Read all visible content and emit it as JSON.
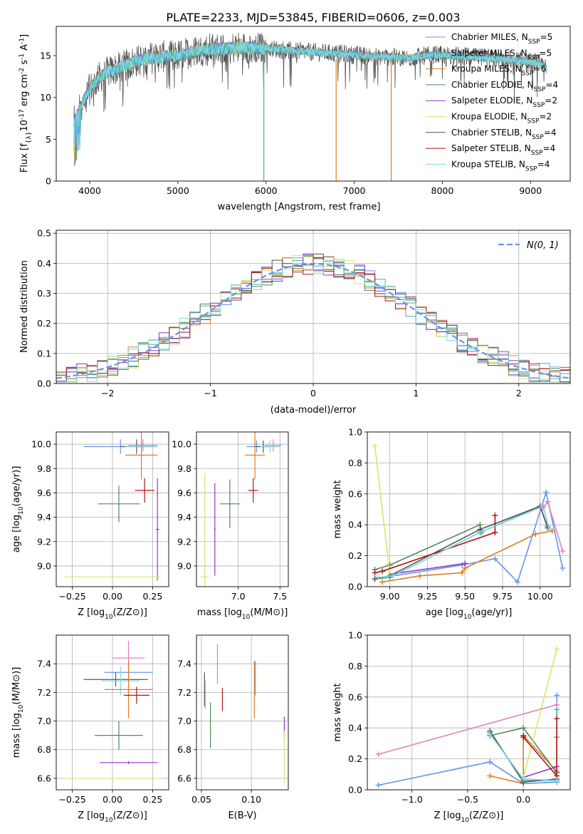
{
  "title": "PLATE=2233, MJD=53845, FIBERID=0606, z=0.003",
  "colors": {
    "c1": "#6495ed",
    "c2": "#40b4a8",
    "c3": "#e07b1e",
    "c4": "#4f8a5a",
    "c5": "#9b32c8",
    "c6": "#d8e86a",
    "c7": "#555555",
    "c8": "#b01414",
    "c9": "#7fd7e0",
    "c10": "#e080c0"
  },
  "chart_data": [
    {
      "id": "spectrum",
      "type": "line",
      "xlabel": "wavelength [Angstrom, rest frame]",
      "ylabel": "Flux [f_λ10^-17 erg cm^-2 s^-1 A^-1]",
      "xlim": [
        3620,
        9450
      ],
      "ylim": [
        0,
        18.5
      ],
      "xticks": [
        4000,
        5000,
        6000,
        7000,
        8000,
        9000
      ],
      "yticks": [
        0,
        5,
        10,
        15
      ],
      "legend_position": "upper right",
      "grid": false,
      "continuum_x": [
        3820,
        3900,
        4000,
        4100,
        4200,
        4400,
        4600,
        4800,
        5000,
        5200,
        5500,
        5800,
        6100,
        6400,
        6700,
        7000,
        7300,
        7600,
        7900,
        8200,
        8500,
        8800,
        9100,
        9180
      ],
      "continuum_y": [
        7.0,
        9.0,
        11.0,
        12.3,
        13.0,
        13.8,
        14.6,
        14.9,
        15.0,
        15.6,
        15.9,
        16.0,
        15.8,
        15.5,
        15.3,
        15.1,
        14.9,
        14.7,
        15.1,
        15.0,
        14.7,
        14.5,
        14.1,
        13.5
      ],
      "series": [
        {
          "name": "Chabrier MILES, N_SSP=5",
          "color": "#6495ed"
        },
        {
          "name": "Salpeter MILES, N_SSP=5",
          "color": "#40b4a8"
        },
        {
          "name": "Kroupa MILES, N_SSP=6",
          "color": "#e07b1e"
        },
        {
          "name": "Chabrier ELODIE, N_SSP=4",
          "color": "#4f8a5a"
        },
        {
          "name": "Salpeter ELODIE, N_SSP=2",
          "color": "#9b32c8"
        },
        {
          "name": "Kroupa ELODIE, N_SSP=2",
          "color": "#d8e86a"
        },
        {
          "name": "Chabrier STELIB, N_SSP=4",
          "color": "#555555"
        },
        {
          "name": "Salpeter STELIB, N_SSP=4",
          "color": "#b01414"
        },
        {
          "name": "Kroupa STELIB, N_SSP=4",
          "color": "#7fd7e0"
        }
      ],
      "drop_lines": [
        {
          "x": 5975,
          "color": "#40b4a8"
        },
        {
          "x": 6795,
          "color": "#e07b1e"
        },
        {
          "x": 7420,
          "color": "#e07b1e"
        }
      ]
    },
    {
      "id": "residual_hist",
      "type": "line",
      "xlabel": "(data-model)/error",
      "ylabel": "Normed distribution",
      "xlim": [
        -2.5,
        2.5
      ],
      "ylim": [
        0,
        0.51
      ],
      "xticks": [
        -2,
        -1,
        0,
        1,
        2
      ],
      "yticks": [
        0.0,
        0.1,
        0.2,
        0.3,
        0.4,
        0.5
      ],
      "grid": true,
      "legend": "N(0, 1)",
      "legend_position": "upper right",
      "gaussian": {
        "mean": 0,
        "sigma": 1,
        "color": "#6495ed"
      }
    },
    {
      "id": "age_vs_Z",
      "type": "scatter",
      "xlabel": "Z [log10(Z/Z⊙)]",
      "ylabel": "age [log10(age/yr)]",
      "xlim": [
        -0.35,
        0.35
      ],
      "ylim": [
        8.83,
        10.1
      ],
      "xticks": [
        -0.25,
        0.0,
        0.25
      ],
      "yticks": [
        9.0,
        9.2,
        9.4,
        9.6,
        9.8,
        10.0
      ],
      "grid": true,
      "points": [
        {
          "x": 0.05,
          "y": 9.98,
          "xerr": 0.23,
          "yerr": 0.06,
          "color": "#6495ed"
        },
        {
          "x": 0.15,
          "y": 9.98,
          "xerr": 0.1,
          "yerr": 0.06,
          "color": "#555555"
        },
        {
          "x": 0.19,
          "y": 9.99,
          "xerr": 0.09,
          "yerr": 0.05,
          "color": "#e080c0"
        },
        {
          "x": 0.18,
          "y": 9.98,
          "xerr": 0.1,
          "yerr": 0.05,
          "color": "#7fd7e0"
        },
        {
          "x": 0.18,
          "y": 9.91,
          "xerr": 0.1,
          "yerr": 0.2,
          "color": "#e07b1e"
        },
        {
          "x": 0.2,
          "y": 9.62,
          "xerr": 0.06,
          "yerr": 0.1,
          "color": "#b01414"
        },
        {
          "x": 0.04,
          "y": 9.51,
          "xerr": 0.13,
          "yerr": 0.15,
          "color": "#4f8a5a"
        },
        {
          "x": 0.28,
          "y": 9.3,
          "xerr": 0.01,
          "yerr": 0.42,
          "color": "#9b32c8"
        },
        {
          "x": 0.0,
          "y": 8.91,
          "xerr": 0.3,
          "yerr": 0.01,
          "color": "#d8e86a"
        }
      ]
    },
    {
      "id": "age_vs_mass",
      "type": "scatter",
      "xlabel": "mass [log10(M/M⊙)]",
      "ylabel": "",
      "xlim": [
        6.5,
        7.6
      ],
      "ylim": [
        8.83,
        10.1
      ],
      "xticks": [
        7.0,
        7.5
      ],
      "yticks": [
        9.0,
        9.2,
        9.4,
        9.6,
        9.8,
        10.0
      ],
      "grid": true,
      "points": [
        {
          "x": 7.22,
          "y": 9.98,
          "xerr": 0.12,
          "yerr": 0.05,
          "color": "#6495ed"
        },
        {
          "x": 7.3,
          "y": 9.98,
          "xerr": 0.1,
          "yerr": 0.05,
          "color": "#555555"
        },
        {
          "x": 7.42,
          "y": 9.99,
          "xerr": 0.1,
          "yerr": 0.05,
          "color": "#e080c0"
        },
        {
          "x": 7.38,
          "y": 9.98,
          "xerr": 0.12,
          "yerr": 0.05,
          "color": "#7fd7e0"
        },
        {
          "x": 7.2,
          "y": 9.91,
          "xerr": 0.12,
          "yerr": 0.2,
          "color": "#e07b1e"
        },
        {
          "x": 7.18,
          "y": 9.62,
          "xerr": 0.06,
          "yerr": 0.1,
          "color": "#b01414"
        },
        {
          "x": 6.9,
          "y": 9.51,
          "xerr": 0.12,
          "yerr": 0.2,
          "color": "#4f8a5a"
        },
        {
          "x": 6.72,
          "y": 9.3,
          "xerr": 0.01,
          "yerr": 0.38,
          "color": "#9b32c8"
        },
        {
          "x": 6.6,
          "y": 8.91,
          "xerr": 0.05,
          "yerr": 0.85,
          "color": "#d8e86a"
        }
      ]
    },
    {
      "id": "weight_vs_age",
      "type": "line",
      "xlabel": "age [log10(age/yr)]",
      "ylabel": "mass weight",
      "xlim": [
        8.85,
        10.2
      ],
      "ylim": [
        0,
        1.0
      ],
      "xticks": [
        9.0,
        9.25,
        9.5,
        9.75,
        10.0
      ],
      "yticks": [
        0.0,
        0.2,
        0.4,
        0.6,
        0.8,
        1.0
      ],
      "grid": true,
      "series": [
        {
          "color": "#6495ed",
          "x": [
            8.9,
            9.48,
            9.7,
            9.85,
            10.04,
            10.15
          ],
          "y": [
            0.05,
            0.14,
            0.18,
            0.03,
            0.61,
            0.12
          ]
        },
        {
          "color": "#40b4a8",
          "x": [
            8.9,
            9.0,
            9.6,
            10.0,
            10.05
          ],
          "y": [
            0.05,
            0.06,
            0.35,
            0.52,
            0.39
          ]
        },
        {
          "color": "#e07b1e",
          "x": [
            8.95,
            9.2,
            9.48,
            9.5,
            9.97,
            10.08
          ],
          "y": [
            0.03,
            0.07,
            0.09,
            0.12,
            0.34,
            0.36
          ]
        },
        {
          "color": "#4f8a5a",
          "x": [
            8.9,
            9.0,
            9.6,
            9.61
          ],
          "y": [
            0.11,
            0.14,
            0.4,
            0.35
          ]
        },
        {
          "color": "#9b32c8",
          "x": [
            9.0,
            9.5
          ],
          "y": [
            0.08,
            0.15
          ]
        },
        {
          "color": "#d8e86a",
          "x": [
            8.9,
            9.0
          ],
          "y": [
            0.91,
            0.08
          ]
        },
        {
          "color": "#555555",
          "x": [
            8.9,
            9.0,
            9.6,
            10.0,
            10.05
          ],
          "y": [
            0.05,
            0.07,
            0.37,
            0.52,
            0.38
          ]
        },
        {
          "color": "#b01414",
          "x": [
            8.9,
            8.95,
            9.7,
            9.7
          ],
          "y": [
            0.09,
            0.1,
            0.35,
            0.46
          ]
        },
        {
          "color": "#7fd7e0",
          "x": [
            8.92,
            9.02,
            9.62,
            10.02,
            10.06
          ],
          "y": [
            0.06,
            0.07,
            0.36,
            0.52,
            0.37
          ]
        },
        {
          "color": "#e080c0",
          "x": [
            10.02,
            10.05,
            10.15
          ],
          "y": [
            0.51,
            0.55,
            0.23
          ]
        }
      ]
    },
    {
      "id": "mass_vs_Z",
      "type": "scatter",
      "xlabel": "Z [log10(Z/Z⊙)]",
      "ylabel": "mass [log10(M/M⊙)]",
      "xlim": [
        -0.35,
        0.35
      ],
      "ylim": [
        6.52,
        7.6
      ],
      "xticks": [
        -0.25,
        0.0,
        0.25
      ],
      "yticks": [
        6.6,
        6.8,
        7.0,
        7.2,
        7.4
      ],
      "grid": true,
      "points": [
        {
          "x": 0.1,
          "y": 7.34,
          "xerr": 0.15,
          "yerr": 0.1,
          "color": "#6495ed"
        },
        {
          "x": 0.02,
          "y": 7.29,
          "xerr": 0.2,
          "yerr": 0.05,
          "color": "#555555"
        },
        {
          "x": 0.1,
          "y": 7.44,
          "xerr": 0.1,
          "yerr": 0.12,
          "color": "#e080c0"
        },
        {
          "x": 0.05,
          "y": 7.28,
          "xerr": 0.12,
          "yerr": 0.1,
          "color": "#7fd7e0"
        },
        {
          "x": 0.1,
          "y": 7.22,
          "xerr": 0.15,
          "yerr": 0.2,
          "color": "#e07b1e"
        },
        {
          "x": 0.15,
          "y": 7.18,
          "xerr": 0.08,
          "yerr": 0.06,
          "color": "#b01414"
        },
        {
          "x": 0.04,
          "y": 6.9,
          "xerr": 0.15,
          "yerr": 0.1,
          "color": "#4f8a5a"
        },
        {
          "x": 0.1,
          "y": 6.71,
          "xerr": 0.18,
          "yerr": 0.01,
          "color": "#9b32c8"
        },
        {
          "x": 0.0,
          "y": 6.6,
          "xerr": 0.3,
          "yerr": 0.01,
          "color": "#d8e86a"
        }
      ]
    },
    {
      "id": "mass_vs_ebv",
      "type": "scatter",
      "xlabel": "E(B-V)",
      "ylabel": "",
      "xlim": [
        0.045,
        0.137
      ],
      "ylim": [
        6.52,
        7.6
      ],
      "xticks": [
        0.05,
        0.1
      ],
      "yticks": [
        6.6,
        6.8,
        7.0,
        7.2,
        7.4
      ],
      "grid": true,
      "points": [
        {
          "x": 0.053,
          "y": 7.22,
          "xerr": 0.0,
          "yerr": 0.12,
          "color": "#555555"
        },
        {
          "x": 0.054,
          "y": 7.18,
          "xerr": 0.0,
          "yerr": 0.1,
          "color": "#7fd7e0"
        },
        {
          "x": 0.059,
          "y": 6.97,
          "xerr": 0.0,
          "yerr": 0.16,
          "color": "#4f8a5a"
        },
        {
          "x": 0.066,
          "y": 7.4,
          "xerr": 0.0,
          "yerr": 0.14,
          "color": "#e080c0"
        },
        {
          "x": 0.071,
          "y": 7.15,
          "xerr": 0.0,
          "yerr": 0.08,
          "color": "#b01414"
        },
        {
          "x": 0.103,
          "y": 7.22,
          "xerr": 0.0,
          "yerr": 0.2,
          "color": "#e07b1e"
        },
        {
          "x": 0.104,
          "y": 7.3,
          "xerr": 0.0,
          "yerr": 0.12,
          "color": "#6495ed"
        },
        {
          "x": 0.133,
          "y": 6.95,
          "xerr": 0.0,
          "yerr": 0.08,
          "color": "#9b32c8"
        },
        {
          "x": 0.133,
          "y": 6.75,
          "xerr": 0.0,
          "yerr": 0.18,
          "color": "#d8e86a"
        }
      ]
    },
    {
      "id": "weight_vs_Z",
      "type": "line",
      "xlabel": "Z [log10(Z/Z⊙)]",
      "ylabel": "mass weight",
      "xlim": [
        -1.4,
        0.42
      ],
      "ylim": [
        0,
        1.0
      ],
      "xticks": [
        -1.0,
        -0.5,
        0.0
      ],
      "yticks": [
        0.0,
        0.2,
        0.4,
        0.6,
        0.8,
        1.0
      ],
      "grid": true,
      "series": [
        {
          "color": "#6495ed",
          "x": [
            -1.3,
            -0.3,
            0.0,
            0.3,
            0.3
          ],
          "y": [
            0.03,
            0.18,
            0.04,
            0.05,
            0.61
          ]
        },
        {
          "color": "#40b4a8",
          "x": [
            -0.3,
            0.0,
            0.3,
            0.3
          ],
          "y": [
            0.37,
            0.06,
            0.06,
            0.52
          ]
        },
        {
          "color": "#e07b1e",
          "x": [
            -0.3,
            0.0,
            0.0,
            0.3,
            0.3
          ],
          "y": [
            0.09,
            0.04,
            0.35,
            0.12,
            0.34
          ]
        },
        {
          "color": "#4f8a5a",
          "x": [
            -0.3,
            0.0,
            0.3
          ],
          "y": [
            0.35,
            0.4,
            0.11
          ]
        },
        {
          "color": "#9b32c8",
          "x": [
            0.0,
            0.3
          ],
          "y": [
            0.08,
            0.15
          ]
        },
        {
          "color": "#d8e86a",
          "x": [
            0.0,
            0.3
          ],
          "y": [
            0.08,
            0.91
          ]
        },
        {
          "color": "#555555",
          "x": [
            -0.3,
            0.0,
            0.3
          ],
          "y": [
            0.38,
            0.05,
            0.07
          ]
        },
        {
          "color": "#b01414",
          "x": [
            0.0,
            0.0,
            0.3,
            0.3
          ],
          "y": [
            0.35,
            0.34,
            0.09,
            0.46
          ]
        },
        {
          "color": "#7fd7e0",
          "x": [
            -0.3,
            0.0,
            0.3
          ],
          "y": [
            0.36,
            0.07,
            0.06
          ]
        },
        {
          "color": "#e080c0",
          "x": [
            -1.3,
            0.3
          ],
          "y": [
            0.23,
            0.55
          ]
        }
      ]
    }
  ]
}
